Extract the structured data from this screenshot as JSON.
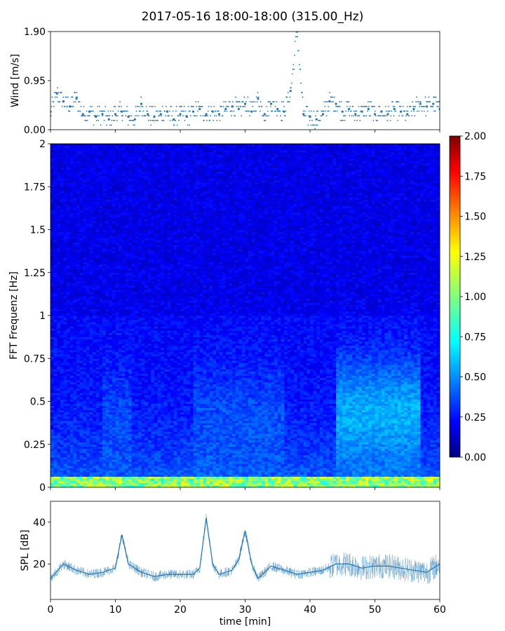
{
  "title": "2017-05-16 18:00-18:00 (315.00_Hz)",
  "chart_data": [
    {
      "type": "scatter",
      "ylabel": "Wind [m/s]",
      "xlabel": "",
      "xlim": [
        0,
        60
      ],
      "ylim": [
        0.0,
        1.9
      ],
      "yticks": [
        0.0,
        0.95,
        1.9
      ],
      "ytick_labels": [
        "0.00",
        "0.95",
        "1.90"
      ],
      "xticks": [
        0,
        10,
        20,
        30,
        40,
        50,
        60
      ],
      "color": "#1f77b4",
      "x": [
        0,
        1,
        2,
        3,
        4,
        5,
        6,
        7,
        8,
        9,
        10,
        11,
        12,
        13,
        14,
        15,
        16,
        17,
        18,
        19,
        20,
        21,
        22,
        23,
        24,
        25,
        26,
        27,
        28,
        29,
        30,
        31,
        32,
        33,
        34,
        35,
        36,
        37,
        38,
        39,
        40,
        41,
        42,
        43,
        44,
        45,
        46,
        47,
        48,
        49,
        50,
        51,
        52,
        53,
        54,
        55,
        56,
        57,
        58,
        59,
        60
      ],
      "y": [
        0.35,
        0.7,
        0.55,
        0.45,
        0.6,
        0.3,
        0.35,
        0.25,
        0.3,
        0.2,
        0.3,
        0.35,
        0.25,
        0.2,
        0.5,
        0.3,
        0.25,
        0.3,
        0.35,
        0.2,
        0.3,
        0.25,
        0.35,
        0.4,
        0.3,
        0.35,
        0.3,
        0.4,
        0.45,
        0.4,
        0.5,
        0.35,
        0.6,
        0.3,
        0.5,
        0.4,
        0.35,
        0.75,
        1.9,
        0.3,
        0.25,
        0.2,
        0.3,
        0.55,
        0.5,
        0.35,
        0.4,
        0.3,
        0.35,
        0.4,
        0.3,
        0.35,
        0.3,
        0.4,
        0.35,
        0.3,
        0.4,
        0.5,
        0.45,
        0.5,
        0.4
      ]
    },
    {
      "type": "heatmap",
      "ylabel": "FFT Frequenz [Hz]",
      "xlabel": "",
      "xlim": [
        0,
        60
      ],
      "ylim": [
        0,
        2
      ],
      "yticks": [
        0,
        0.25,
        0.5,
        0.75,
        1,
        1.25,
        1.5,
        1.75,
        2
      ],
      "ytick_labels": [
        "0",
        "0.25",
        "0.5",
        "0.75",
        "1",
        "1.25",
        "1.5",
        "1.75",
        "2"
      ],
      "colormap": "jet",
      "colorbar": {
        "range": [
          0.0,
          2.0
        ],
        "ticks": [
          "0.00",
          "0.25",
          "0.50",
          "0.75",
          "1.00",
          "1.25",
          "1.50",
          "1.75",
          "2.00"
        ]
      }
    },
    {
      "type": "line",
      "ylabel": "SPL [dB]",
      "xlabel": "time [min]",
      "xlim": [
        0,
        60
      ],
      "ylim": [
        3,
        50
      ],
      "yticks": [
        20,
        40
      ],
      "ytick_labels": [
        "20",
        "40"
      ],
      "xticks": [
        0,
        10,
        20,
        30,
        40,
        50,
        60
      ],
      "xtick_labels": [
        "0",
        "10",
        "20",
        "30",
        "40",
        "50",
        "60"
      ],
      "color": "#1f77b4",
      "x": [
        0,
        2,
        4,
        6,
        8,
        10,
        11,
        12,
        14,
        16,
        18,
        20,
        22,
        23,
        24,
        25,
        26,
        28,
        29,
        30,
        31,
        32,
        34,
        36,
        38,
        40,
        42,
        44,
        46,
        48,
        50,
        52,
        54,
        56,
        58,
        60
      ],
      "y": [
        13,
        20,
        17,
        15,
        16,
        18,
        34,
        20,
        16,
        14,
        15,
        15,
        15,
        18,
        42,
        20,
        15,
        17,
        22,
        36,
        20,
        13,
        19,
        17,
        15,
        16,
        17,
        20,
        20,
        18,
        19,
        19,
        18,
        17,
        16,
        20
      ]
    }
  ]
}
